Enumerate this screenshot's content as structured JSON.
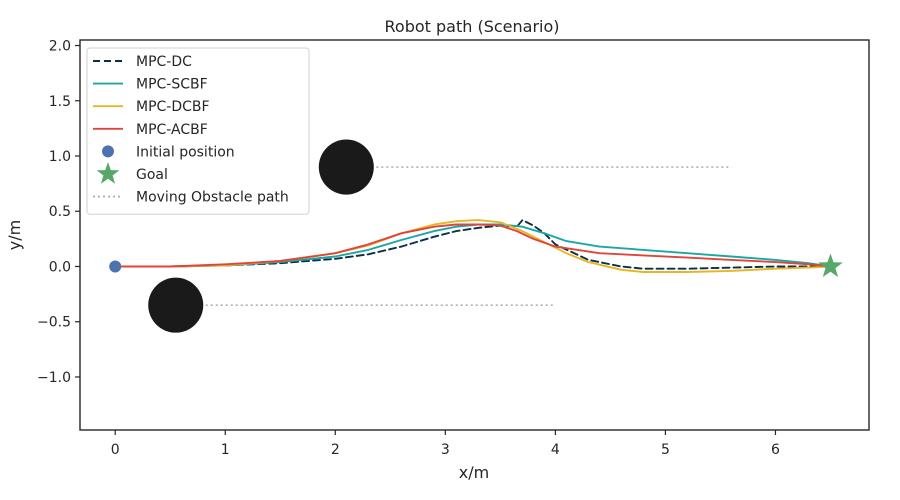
{
  "chart_data": {
    "type": "line",
    "title": "Robot path (Scenario)",
    "xlabel": "x/m",
    "ylabel": "y/m",
    "xlim": [
      -0.32,
      6.85
    ],
    "ylim": [
      -1.48,
      2.05
    ],
    "xticks": [
      0,
      1,
      2,
      3,
      4,
      5,
      6
    ],
    "yticks": [
      -1.0,
      -0.5,
      0.0,
      0.5,
      1.0,
      1.5,
      2.0
    ],
    "xtick_labels": [
      "0",
      "1",
      "2",
      "3",
      "4",
      "5",
      "6"
    ],
    "ytick_labels": [
      "−1.0",
      "−0.5",
      "0.0",
      "0.5",
      "1.0",
      "1.5",
      "2.0"
    ],
    "grid": false,
    "legend_position": "top-left",
    "series": [
      {
        "name": "MPC-DC",
        "style": "dashed",
        "color": "#0d2f45",
        "x": [
          0,
          0.5,
          1.0,
          1.5,
          2.0,
          2.3,
          2.6,
          2.9,
          3.1,
          3.3,
          3.5,
          3.65,
          3.7,
          3.8,
          3.9,
          4.0,
          4.3,
          4.6,
          4.8,
          5.2,
          5.6,
          6.0,
          6.3,
          6.5
        ],
        "y": [
          0,
          0.0,
          0.01,
          0.03,
          0.07,
          0.11,
          0.18,
          0.27,
          0.32,
          0.35,
          0.37,
          0.36,
          0.42,
          0.37,
          0.3,
          0.2,
          0.06,
          0.0,
          -0.02,
          -0.02,
          -0.01,
          0.0,
          0.0,
          0.0
        ]
      },
      {
        "name": "MPC-SCBF",
        "style": "solid",
        "color": "#1aa7a7",
        "x": [
          0,
          0.5,
          1.0,
          1.5,
          2.0,
          2.3,
          2.6,
          2.9,
          3.1,
          3.3,
          3.5,
          3.7,
          3.9,
          4.1,
          4.4,
          4.8,
          5.2,
          5.6,
          6.0,
          6.3,
          6.5
        ],
        "y": [
          0,
          0.0,
          0.01,
          0.04,
          0.09,
          0.15,
          0.24,
          0.32,
          0.36,
          0.38,
          0.38,
          0.36,
          0.3,
          0.23,
          0.18,
          0.15,
          0.12,
          0.09,
          0.06,
          0.03,
          0.0
        ]
      },
      {
        "name": "MPC-DCBF",
        "style": "solid",
        "color": "#e8b526",
        "x": [
          0,
          0.5,
          1.0,
          1.5,
          2.0,
          2.3,
          2.6,
          2.9,
          3.1,
          3.3,
          3.5,
          3.7,
          3.9,
          4.1,
          4.3,
          4.6,
          4.8,
          5.2,
          5.6,
          6.0,
          6.3,
          6.5
        ],
        "y": [
          0,
          0.0,
          0.01,
          0.05,
          0.12,
          0.19,
          0.3,
          0.38,
          0.41,
          0.42,
          0.4,
          0.32,
          0.22,
          0.12,
          0.04,
          -0.03,
          -0.05,
          -0.05,
          -0.04,
          -0.02,
          -0.01,
          0.0
        ]
      },
      {
        "name": "MPC-ACBF",
        "style": "solid",
        "color": "#e0453a",
        "x": [
          0,
          0.5,
          1.0,
          1.5,
          2.0,
          2.3,
          2.6,
          2.9,
          3.1,
          3.3,
          3.5,
          3.65,
          3.8,
          4.0,
          4.4,
          4.8,
          5.2,
          5.6,
          6.0,
          6.3,
          6.5
        ],
        "y": [
          0,
          0.0,
          0.02,
          0.05,
          0.12,
          0.2,
          0.3,
          0.36,
          0.38,
          0.38,
          0.37,
          0.32,
          0.25,
          0.18,
          0.12,
          0.1,
          0.08,
          0.06,
          0.04,
          0.02,
          0.0
        ]
      }
    ],
    "markers": [
      {
        "name": "Initial position",
        "shape": "circle",
        "color": "#4c72b0",
        "x": 0.0,
        "y": 0.0
      },
      {
        "name": "Goal",
        "shape": "star",
        "color": "#55a868",
        "x": 6.5,
        "y": 0.0
      }
    ],
    "obstacles": [
      {
        "x": 2.1,
        "y": 0.9,
        "radius": 0.25,
        "color": "#1a1a1a",
        "path_x_end": 5.6
      },
      {
        "x": 0.55,
        "y": -0.35,
        "radius": 0.25,
        "color": "#1a1a1a",
        "path_x_end": 4.0
      }
    ],
    "obstacle_path": {
      "name": "Moving Obstacle path",
      "style": "dotted",
      "color": "#b0b0b0"
    }
  }
}
